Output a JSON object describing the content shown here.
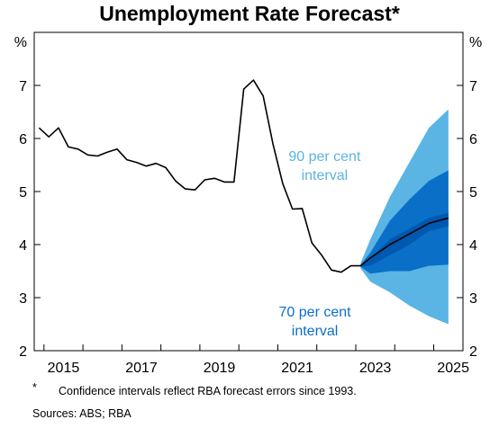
{
  "title": "Unemployment Rate Forecast*",
  "footnote": {
    "mark": "*",
    "text": "Confidence intervals reflect RBA forecast errors since 1993."
  },
  "sources": "Sources: ABS; RBA",
  "colors": {
    "line": "#000000",
    "band90": "#5ab4e4",
    "band70": "#0a6fc7",
    "band_center": "#0058b0"
  },
  "chart_data": {
    "type": "line",
    "title": "Unemployment Rate Forecast*",
    "ylabel_left": "%",
    "ylabel_right": "%",
    "ylim": [
      2,
      8
    ],
    "yticks": [
      2,
      3,
      4,
      5,
      6,
      7
    ],
    "xlim": [
      2014.75,
      2025.75
    ],
    "xticks": [
      2015,
      2017,
      2019,
      2021,
      2023,
      2025
    ],
    "grid": false,
    "series": [
      {
        "kind": "line",
        "x": [
          2014.875,
          2015.125,
          2015.375,
          2015.625,
          2015.875,
          2016.125,
          2016.375,
          2016.625,
          2016.875,
          2017.125,
          2017.375,
          2017.625,
          2017.875,
          2018.125,
          2018.375,
          2018.625,
          2018.875,
          2019.125,
          2019.375,
          2019.625,
          2019.875,
          2020.125,
          2020.375,
          2020.625,
          2020.875,
          2021.125,
          2021.375,
          2021.625,
          2021.875,
          2022.125,
          2022.375,
          2022.625,
          2022.875,
          2023.125,
          2023.375,
          2023.875,
          2024.375,
          2024.875,
          2025.375
        ],
        "values": [
          6.2,
          6.03,
          6.2,
          5.84,
          5.8,
          5.69,
          5.67,
          5.74,
          5.8,
          5.6,
          5.55,
          5.48,
          5.53,
          5.45,
          5.2,
          5.05,
          5.03,
          5.22,
          5.25,
          5.18,
          5.18,
          6.93,
          7.1,
          6.8,
          5.9,
          5.15,
          4.67,
          4.68,
          4.03,
          3.8,
          3.52,
          3.48,
          3.6,
          3.6,
          3.75,
          4.0,
          4.2,
          4.4,
          4.5
        ]
      },
      {
        "name": "90 per cent interval",
        "kind": "band",
        "x": [
          2023.125,
          2023.375,
          2023.875,
          2024.375,
          2024.875,
          2025.375
        ],
        "upper": [
          3.65,
          4.1,
          4.9,
          5.55,
          6.2,
          6.55
        ],
        "lower": [
          3.55,
          3.3,
          3.1,
          2.85,
          2.65,
          2.5
        ]
      },
      {
        "name": "70 per cent interval",
        "kind": "band",
        "x": [
          2023.125,
          2023.375,
          2023.875,
          2024.375,
          2024.875,
          2025.375
        ],
        "upper": [
          3.62,
          3.85,
          4.45,
          4.85,
          5.2,
          5.4
        ],
        "lower": [
          3.58,
          3.45,
          3.5,
          3.5,
          3.6,
          3.62
        ]
      },
      {
        "kind": "band",
        "x": [
          2023.125,
          2023.375,
          2023.875,
          2024.375,
          2024.875,
          2025.375
        ],
        "upper": [
          3.61,
          3.75,
          4.1,
          4.3,
          4.5,
          4.6
        ],
        "lower": [
          3.59,
          3.6,
          3.8,
          4.0,
          4.25,
          4.35
        ]
      }
    ],
    "annotations": [
      {
        "lines": [
          "90 per cent",
          "interval"
        ],
        "color": "#5ab4e4"
      },
      {
        "lines": [
          "70 per cent",
          "interval"
        ],
        "color": "#0a6fc7"
      }
    ]
  }
}
